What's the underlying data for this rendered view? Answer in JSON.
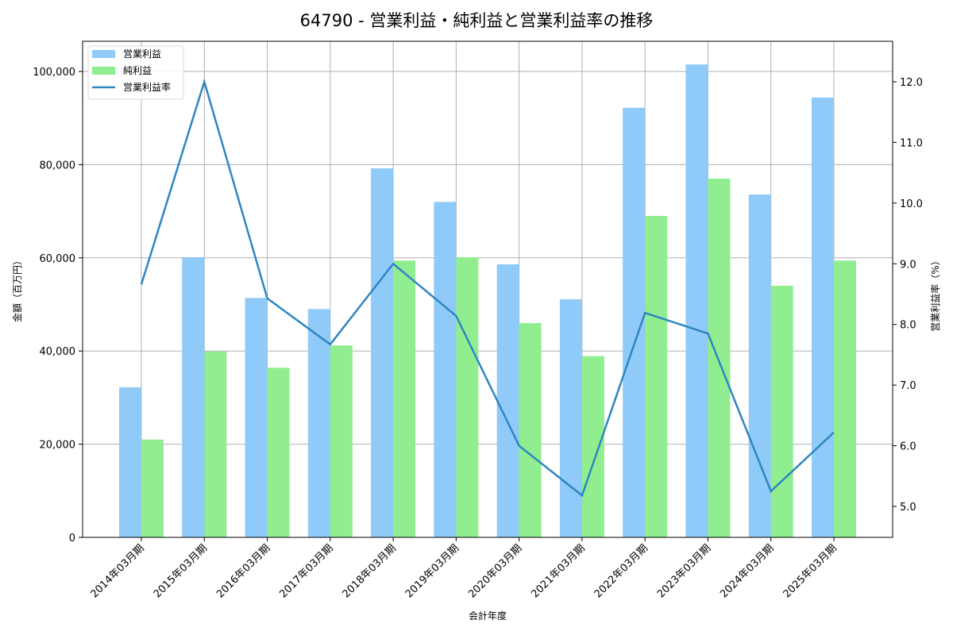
{
  "chart_data": {
    "type": "bar+line",
    "title": "64790 - 営業利益・純利益と営業利益率の推移",
    "xlabel": "会計年度",
    "ylabel": "金額（百万円）",
    "y2label": "営業利益率（%）",
    "ylim": [
      0,
      106000
    ],
    "y2lim": [
      4.5,
      12.7
    ],
    "yticks": [
      "0",
      "20,000",
      "40,000",
      "60,000",
      "80,000",
      "100,000"
    ],
    "y2ticks": [
      "5.0",
      "6.0",
      "7.0",
      "8.0",
      "9.0",
      "10.0",
      "11.0",
      "12.0"
    ],
    "grid": true,
    "legend_position": "upper left",
    "categories": [
      "2014年03月期",
      "2015年03月期",
      "2016年03月期",
      "2017年03月期",
      "2018年03月期",
      "2019年03月期",
      "2020年03月期",
      "2021年03月期",
      "2022年03月期",
      "2023年03月期",
      "2024年03月期",
      "2025年03月期"
    ],
    "series": [
      {
        "name": "営業利益",
        "type": "bar",
        "axis": "left",
        "color": "#90CAF9",
        "values": [
          32200,
          60100,
          51400,
          49000,
          79200,
          72000,
          58600,
          51100,
          92200,
          101500,
          73600,
          94400
        ]
      },
      {
        "name": "純利益",
        "type": "bar",
        "axis": "left",
        "color": "#90EE90",
        "values": [
          21000,
          39900,
          36400,
          41200,
          59400,
          60100,
          46000,
          38900,
          69000,
          77000,
          54000,
          59400
        ]
      },
      {
        "name": "営業利益率",
        "type": "line",
        "axis": "right",
        "color": "#2E86C1",
        "values": [
          8.66,
          12.0,
          8.43,
          7.67,
          9.0,
          8.14,
          6.0,
          5.18,
          8.19,
          7.85,
          5.25,
          6.22
        ]
      }
    ]
  }
}
